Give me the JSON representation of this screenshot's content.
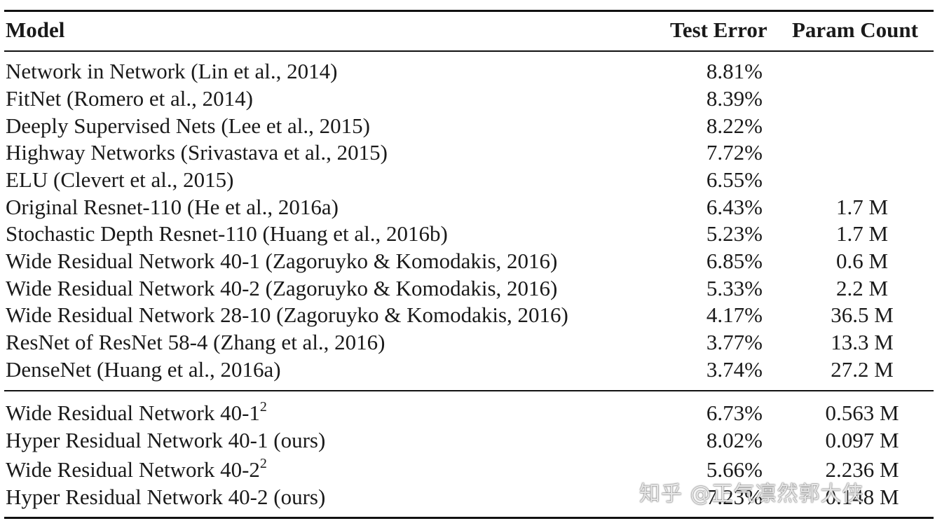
{
  "table": {
    "headers": {
      "model": "Model",
      "test_error": "Test Error",
      "param_count": "Param Count"
    },
    "rows_group1": [
      {
        "model": "Network in Network (Lin et al., 2014)",
        "error": "8.81%",
        "params": ""
      },
      {
        "model": "FitNet (Romero et al., 2014)",
        "error": "8.39%",
        "params": ""
      },
      {
        "model": "Deeply Supervised Nets (Lee et al., 2015)",
        "error": "8.22%",
        "params": ""
      },
      {
        "model": "Highway Networks (Srivastava et al., 2015)",
        "error": "7.72%",
        "params": ""
      },
      {
        "model": "ELU (Clevert et al., 2015)",
        "error": "6.55%",
        "params": ""
      },
      {
        "model": "Original Resnet-110 (He et al., 2016a)",
        "error": "6.43%",
        "params": "1.7 M"
      },
      {
        "model": "Stochastic Depth Resnet-110 (Huang et al., 2016b)",
        "error": "5.23%",
        "params": "1.7 M"
      },
      {
        "model": "Wide Residual Network 40-1 (Zagoruyko & Komodakis, 2016)",
        "error": "6.85%",
        "params": "0.6 M"
      },
      {
        "model": "Wide Residual Network 40-2 (Zagoruyko & Komodakis, 2016)",
        "error": "5.33%",
        "params": "2.2 M"
      },
      {
        "model": "Wide Residual Network 28-10 (Zagoruyko & Komodakis, 2016)",
        "error": "4.17%",
        "params": "36.5 M"
      },
      {
        "model": "ResNet of ResNet 58-4 (Zhang et al., 2016)",
        "error": "3.77%",
        "params": "13.3 M"
      },
      {
        "model": "DenseNet (Huang et al., 2016a)",
        "error": "3.74%",
        "params": "27.2 M"
      }
    ],
    "rows_group2": [
      {
        "model": "Wide Residual Network 40-1",
        "sup": "2",
        "error": "6.73%",
        "params": "0.563 M"
      },
      {
        "model": "Hyper Residual Network 40-1 (ours)",
        "sup": "",
        "error": "8.02%",
        "params": "0.097 M"
      },
      {
        "model": "Wide Residual Network 40-2",
        "sup": "2",
        "error": "5.66%",
        "params": "2.236 M"
      },
      {
        "model": "Hyper Residual Network 40-2 (ours)",
        "sup": "",
        "error": "7.23%",
        "params": "0.148 M"
      }
    ]
  },
  "watermark": "知乎 @正气凛然郭大侠"
}
